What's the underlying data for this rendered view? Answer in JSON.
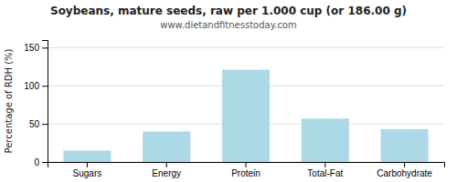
{
  "chart_data": {
    "type": "bar",
    "title": "Soybeans, mature seeds, raw per 1.000 cup (or 186.00 g)",
    "subtitle": "www.dietandfitnesstoday.com",
    "categories": [
      "Sugars",
      "Energy",
      "Protein",
      "Total-Fat",
      "Carbohydrate"
    ],
    "values": [
      15,
      40,
      121,
      57,
      43
    ],
    "color": "#add8e6",
    "ylabel": "Percentage of RDH (%)",
    "ylim": [
      0,
      160
    ],
    "yticks": [
      0,
      50,
      100,
      150
    ],
    "grid": true
  }
}
